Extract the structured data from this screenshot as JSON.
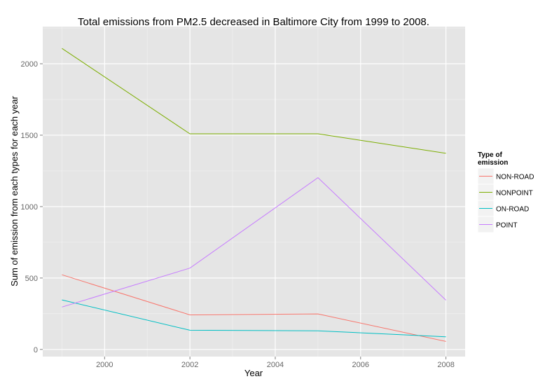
{
  "chart_data": {
    "type": "line",
    "title": "Total emissions from PM2.5 decreased in Baltimore City from 1999 to 2008.",
    "xlabel": "Year",
    "ylabel": "Sum of emission from each types for each year",
    "x": [
      1999,
      2002,
      2005,
      2008
    ],
    "x_ticks": [
      2000,
      2002,
      2004,
      2006,
      2008
    ],
    "y_ticks": [
      0,
      500,
      1000,
      1500,
      2000
    ],
    "xlim": [
      1998.55,
      2008.45
    ],
    "ylim": [
      -50,
      2260
    ],
    "grid": true,
    "legend_position": "right",
    "legend_title": "Type of emission",
    "legend_title_lines": [
      "Type of",
      "emission"
    ],
    "series": [
      {
        "name": "NON-ROAD",
        "color": "#F8766D",
        "values": [
          522.9,
          242.0,
          248.9,
          55.8
        ]
      },
      {
        "name": "NONPOINT",
        "color": "#7CAE00",
        "values": [
          2107.6,
          1509.5,
          1509.5,
          1373.2
        ]
      },
      {
        "name": "ON-ROAD",
        "color": "#00BFC4",
        "values": [
          346.8,
          134.3,
          130.4,
          88.3
        ]
      },
      {
        "name": "POINT",
        "color": "#C77CFF",
        "values": [
          296.8,
          569.3,
          1202.5,
          344.98
        ]
      }
    ]
  },
  "colors": {
    "panel_background": "#E5E5E5",
    "grid_major": "#FFFFFF",
    "grid_minor": "#F2F2F2"
  }
}
